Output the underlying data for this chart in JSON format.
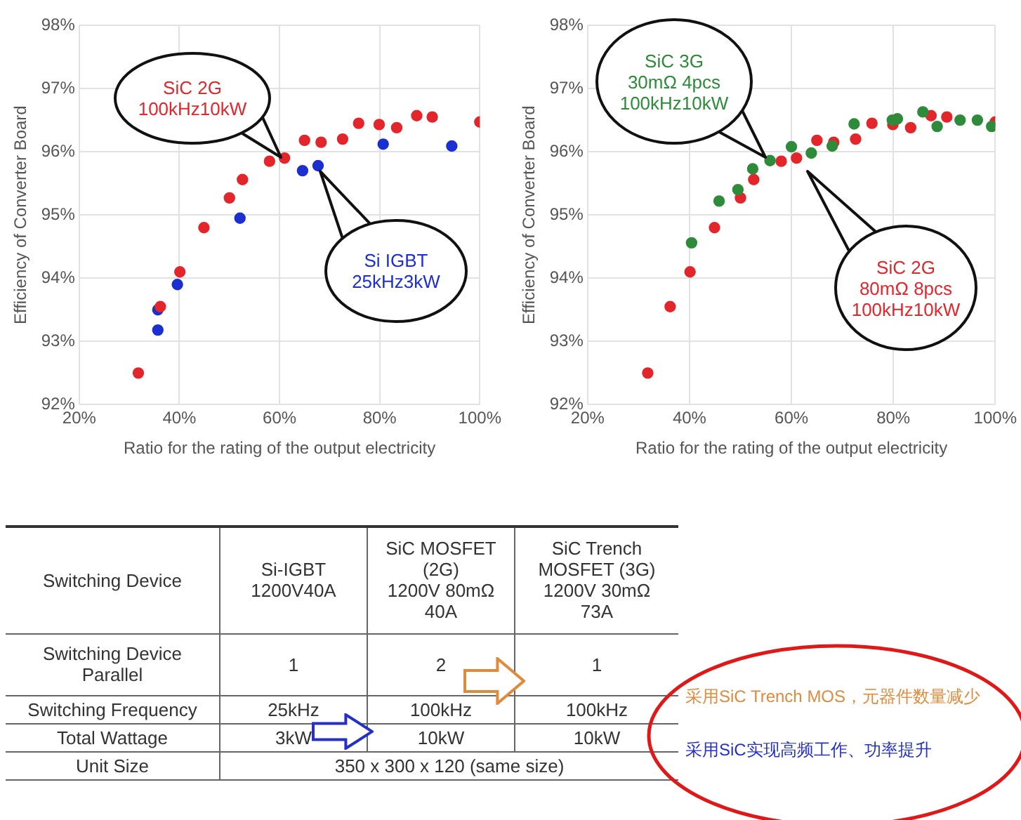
{
  "chart_data": [
    {
      "type": "scatter",
      "xlabel": "Ratio for the rating of the output electricity",
      "ylabel": "Efficiency of Converter Board",
      "xlim": [
        20,
        100
      ],
      "ylim": [
        92,
        98
      ],
      "xticks": [
        {
          "value": 20,
          "label": "20%"
        },
        {
          "value": 40,
          "label": "40%"
        },
        {
          "value": 60,
          "label": "60%"
        },
        {
          "value": 80,
          "label": "80%"
        },
        {
          "value": 100,
          "label": "100%"
        }
      ],
      "yticks": [
        {
          "value": 92,
          "label": "92%"
        },
        {
          "value": 93,
          "label": "93%"
        },
        {
          "value": 94,
          "label": "94%"
        },
        {
          "value": 95,
          "label": "95%"
        },
        {
          "value": 96,
          "label": "96%"
        },
        {
          "value": 97,
          "label": "97%"
        },
        {
          "value": 98,
          "label": "98%"
        }
      ],
      "grid": true,
      "legend": false,
      "marker": "circle",
      "series": [
        {
          "name": "SiC 2G",
          "color": "#e3262b",
          "x": [
            31.8,
            36.2,
            40.1,
            44.9,
            50.0,
            52.6,
            58.0,
            61.0,
            65.0,
            68.3,
            72.6,
            75.8,
            79.9,
            83.4,
            87.4,
            90.5,
            100
          ],
          "values": [
            92.5,
            93.55,
            94.1,
            94.8,
            95.27,
            95.56,
            95.85,
            95.9,
            96.18,
            96.15,
            96.2,
            96.45,
            96.43,
            96.38,
            96.57,
            96.55,
            96.47
          ]
        },
        {
          "name": "Si IGBT",
          "color": "#1c2fd0",
          "x": [
            35.7,
            35.7,
            39.6,
            52.1,
            64.6,
            67.7,
            80.7,
            94.4
          ],
          "values": [
            93.5,
            93.18,
            93.9,
            94.95,
            95.7,
            95.78,
            96.12,
            96.09
          ]
        }
      ],
      "annotations": [
        "100kHz10kW",
        "25kHz3kW"
      ]
    },
    {
      "type": "scatter",
      "xlabel": "Ratio for the rating of the output electricity",
      "ylabel": "Efficiency of Converter Board",
      "xlim": [
        20,
        100
      ],
      "ylim": [
        92,
        98
      ],
      "xticks": [
        {
          "value": 20,
          "label": "20%"
        },
        {
          "value": 40,
          "label": "40%"
        },
        {
          "value": 60,
          "label": "60%"
        },
        {
          "value": 80,
          "label": "80%"
        },
        {
          "value": 100,
          "label": "100%"
        }
      ],
      "yticks": [
        {
          "value": 92,
          "label": "92%"
        },
        {
          "value": 93,
          "label": "93%"
        },
        {
          "value": 94,
          "label": "94%"
        },
        {
          "value": 95,
          "label": "95%"
        },
        {
          "value": 96,
          "label": "96%"
        },
        {
          "value": 97,
          "label": "97%"
        },
        {
          "value": 98,
          "label": "98%"
        }
      ],
      "grid": true,
      "legend": false,
      "marker": "circle",
      "series": [
        {
          "name": "SiC 3G",
          "color": "#2e8b3a",
          "x": [
            40.4,
            45.8,
            49.5,
            52.4,
            55.8,
            60.0,
            63.9,
            68.0,
            72.3,
            79.8,
            80.8,
            85.8,
            88.6,
            93.1,
            96.5,
            99.3
          ],
          "values": [
            94.56,
            95.22,
            95.4,
            95.73,
            95.86,
            96.08,
            95.98,
            96.09,
            96.44,
            96.5,
            96.52,
            96.63,
            96.4,
            96.5,
            96.5,
            96.4
          ]
        },
        {
          "name": "SiC 2G",
          "color": "#e3262b",
          "x": [
            31.8,
            36.2,
            40.1,
            44.9,
            50.0,
            52.6,
            58.0,
            61.0,
            65.0,
            68.3,
            72.6,
            75.8,
            79.9,
            83.4,
            87.4,
            90.5,
            100
          ],
          "values": [
            92.5,
            93.55,
            94.1,
            94.8,
            95.27,
            95.56,
            95.85,
            95.9,
            96.18,
            96.15,
            96.2,
            96.45,
            96.43,
            96.38,
            96.57,
            96.55,
            96.47
          ]
        }
      ],
      "annotations": [
        "30mΩ 4pcs\n100kHz10kW",
        "80mΩ 8pcs\n100kHz10kW"
      ]
    },
    {
      "type": "other",
      "annotations": [
        "Switching Device",
        "Si-IGBT\n1200V40A",
        "SiC MOSFET\n(2G)\n1200V 80mΩ\n40A",
        "SiC Trench\nMOSFET (3G)\n1200V 30mΩ\n73A",
        "Switching Device\nParallel",
        "1",
        "2",
        "1",
        "Switching Frequency",
        "25kHz",
        "100kHz",
        "100kHz",
        "Total Wattage",
        "3kW",
        "10kW",
        "10kW",
        "Unit Size",
        "350 x 300 x 120 (same size)",
        "采用SiC Trench MOS，元器件数量减少",
        "采用SiC实现高频工作、功率提升"
      ]
    }
  ]
}
